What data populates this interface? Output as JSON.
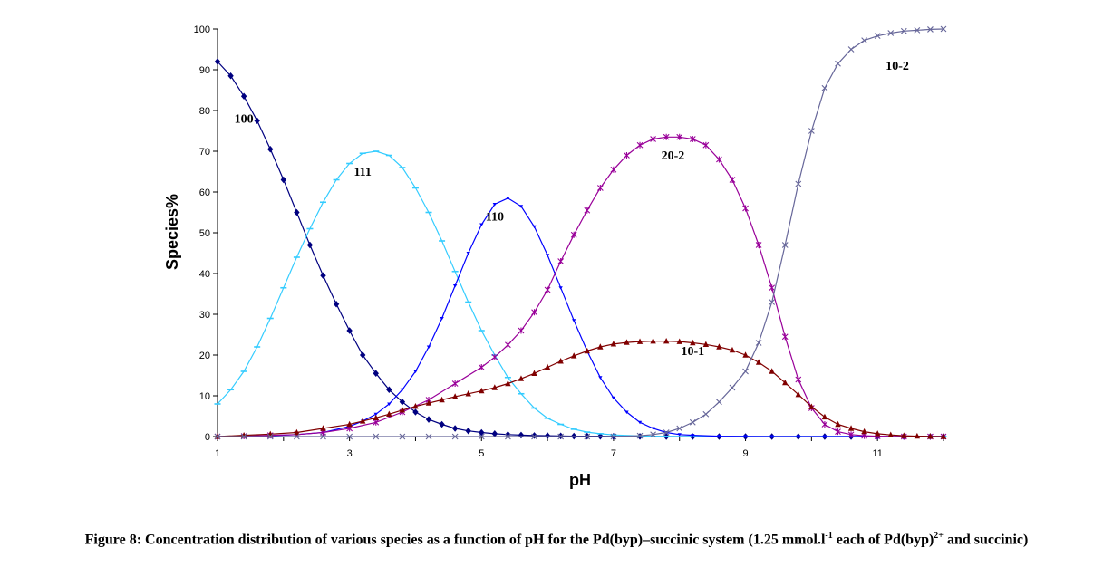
{
  "chart_data": {
    "type": "line",
    "title": "",
    "xlabel": "pH",
    "ylabel": "Species%",
    "xlim": [
      1,
      12
    ],
    "ylim": [
      0,
      100
    ],
    "x_ticks": [
      1,
      3,
      5,
      7,
      9,
      11
    ],
    "y_ticks": [
      0,
      10,
      20,
      30,
      40,
      50,
      60,
      70,
      80,
      90,
      100
    ],
    "grid": false,
    "legend": "none",
    "series": [
      {
        "name": "100",
        "color": "#000080",
        "marker": "diamond",
        "x": [
          1.0,
          1.2,
          1.4,
          1.6,
          1.8,
          2.0,
          2.2,
          2.4,
          2.6,
          2.8,
          3.0,
          3.2,
          3.4,
          3.6,
          3.8,
          4.0,
          4.2,
          4.4,
          4.6,
          4.8,
          5.0,
          5.2,
          5.4,
          5.6,
          5.8,
          6.0,
          6.2,
          6.4,
          6.6,
          6.8,
          7.0,
          7.4,
          7.8,
          8.2,
          8.6,
          9.0,
          9.4,
          9.8,
          10.2,
          10.6,
          11.0,
          11.4,
          11.8,
          12.0
        ],
        "y": [
          92,
          88.5,
          83.5,
          77.5,
          70.5,
          63,
          55,
          47,
          39.5,
          32.5,
          26,
          20,
          15.5,
          11.5,
          8.5,
          6,
          4.2,
          3,
          2,
          1.4,
          1,
          0.7,
          0.5,
          0.35,
          0.25,
          0.2,
          0.15,
          0.1,
          0.1,
          0.08,
          0.05,
          0.03,
          0,
          0,
          0,
          0,
          0,
          0,
          0,
          0,
          0,
          0,
          0,
          0
        ]
      },
      {
        "name": "111",
        "color": "#33CCFF",
        "marker": "dash",
        "x": [
          1.0,
          1.2,
          1.4,
          1.6,
          1.8,
          2.0,
          2.2,
          2.4,
          2.6,
          2.8,
          3.0,
          3.2,
          3.4,
          3.6,
          3.8,
          4.0,
          4.2,
          4.4,
          4.6,
          4.8,
          5.0,
          5.2,
          5.4,
          5.6,
          5.8,
          6.0,
          6.2,
          6.4,
          6.6,
          6.8,
          7.0,
          7.4,
          7.8,
          8.2,
          8.6,
          9.0,
          9.4,
          9.8,
          10.2,
          10.6,
          11.0,
          11.4,
          11.8,
          12.0
        ],
        "y": [
          8,
          11.5,
          16,
          22,
          29,
          36.5,
          44,
          51,
          57.5,
          63,
          67,
          69.5,
          70,
          69,
          66,
          61,
          55,
          48,
          40.5,
          33,
          26,
          20,
          14.5,
          10.5,
          7,
          4.5,
          3,
          1.8,
          1.1,
          0.7,
          0.4,
          0.15,
          0.05,
          0,
          0,
          0,
          0,
          0,
          0,
          0,
          0,
          0,
          0,
          0
        ]
      },
      {
        "name": "110",
        "color": "#0000FF",
        "marker": "triangle-down",
        "x": [
          1.0,
          1.4,
          1.8,
          2.2,
          2.6,
          3.0,
          3.2,
          3.4,
          3.6,
          3.8,
          4.0,
          4.2,
          4.4,
          4.6,
          4.8,
          5.0,
          5.2,
          5.4,
          5.6,
          5.8,
          6.0,
          6.2,
          6.4,
          6.6,
          6.8,
          7.0,
          7.2,
          7.4,
          7.6,
          7.8,
          8.0,
          8.2,
          8.6,
          9.0,
          9.4,
          9.8,
          10.2,
          10.6,
          11.0,
          11.4,
          11.8,
          12.0
        ],
        "y": [
          0,
          0.1,
          0.2,
          0.5,
          1,
          2.5,
          3.8,
          5.5,
          8,
          11.5,
          16,
          22,
          29,
          37,
          45,
          52,
          57,
          58.5,
          56.5,
          51.5,
          44.5,
          36.5,
          28.5,
          21,
          14.5,
          9.5,
          6,
          3.5,
          2,
          1,
          0.5,
          0.3,
          0.1,
          0.05,
          0,
          0,
          0,
          0,
          0,
          0,
          0,
          0
        ]
      },
      {
        "name": "20-2",
        "color": "#990099",
        "marker": "star",
        "x": [
          1.0,
          1.4,
          1.8,
          2.2,
          2.6,
          3.0,
          3.4,
          3.8,
          4.2,
          4.6,
          5.0,
          5.2,
          5.4,
          5.6,
          5.8,
          6.0,
          6.2,
          6.4,
          6.6,
          6.8,
          7.0,
          7.2,
          7.4,
          7.6,
          7.8,
          8.0,
          8.2,
          8.4,
          8.6,
          8.8,
          9.0,
          9.2,
          9.4,
          9.6,
          9.8,
          10.0,
          10.2,
          10.4,
          10.6,
          10.8,
          11.0,
          11.4,
          11.8,
          12.0
        ],
        "y": [
          0,
          0.1,
          0.3,
          0.5,
          1,
          2,
          3.5,
          6,
          9,
          13,
          17,
          19.5,
          22.5,
          26,
          30.5,
          36,
          43,
          49.5,
          55.5,
          61,
          65.5,
          69,
          71.5,
          73,
          73.5,
          73.5,
          73,
          71.5,
          68,
          63,
          56,
          47,
          36.5,
          24.5,
          14,
          7,
          3,
          1.2,
          0.5,
          0.2,
          0.1,
          0,
          0,
          0
        ]
      },
      {
        "name": "10-1",
        "color": "#800000",
        "marker": "triangle-up",
        "x": [
          1.0,
          1.4,
          1.8,
          2.2,
          2.6,
          3.0,
          3.2,
          3.4,
          3.6,
          3.8,
          4.0,
          4.2,
          4.4,
          4.6,
          4.8,
          5.0,
          5.2,
          5.4,
          5.6,
          5.8,
          6.0,
          6.2,
          6.4,
          6.6,
          6.8,
          7.0,
          7.2,
          7.4,
          7.6,
          7.8,
          8.0,
          8.2,
          8.4,
          8.6,
          8.8,
          9.0,
          9.2,
          9.4,
          9.6,
          9.8,
          10.0,
          10.2,
          10.4,
          10.6,
          10.8,
          11.0,
          11.2,
          11.4,
          11.6,
          11.8,
          12.0
        ],
        "y": [
          0,
          0.3,
          0.6,
          1,
          2,
          3,
          3.8,
          4.6,
          5.5,
          6.5,
          7.4,
          8.2,
          9,
          9.8,
          10.5,
          11.2,
          12,
          13,
          14.2,
          15.5,
          17,
          18.5,
          19.8,
          21,
          22,
          22.7,
          23.1,
          23.3,
          23.4,
          23.4,
          23.3,
          23,
          22.6,
          22,
          21.2,
          20,
          18.2,
          16,
          13.2,
          10.3,
          7.3,
          4.8,
          3,
          2,
          1.2,
          0.7,
          0.4,
          0.2,
          0.1,
          0.05,
          0
        ]
      },
      {
        "name": "10-2",
        "color": "#666699",
        "marker": "x",
        "x": [
          1.0,
          1.4,
          1.8,
          2.2,
          2.6,
          3.0,
          3.4,
          3.8,
          4.2,
          4.6,
          5.0,
          5.4,
          5.8,
          6.2,
          6.6,
          7.0,
          7.4,
          7.6,
          7.8,
          8.0,
          8.2,
          8.4,
          8.6,
          8.8,
          9.0,
          9.2,
          9.4,
          9.6,
          9.8,
          10.0,
          10.2,
          10.4,
          10.6,
          10.8,
          11.0,
          11.2,
          11.4,
          11.6,
          11.8,
          12.0
        ],
        "y": [
          0,
          0,
          0,
          0,
          0,
          0,
          0,
          0,
          0,
          0,
          0,
          0,
          0,
          0,
          0,
          0,
          0.2,
          0.5,
          1,
          2,
          3.5,
          5.5,
          8.5,
          12,
          16,
          23,
          33,
          47,
          62,
          75,
          85.5,
          91.5,
          95,
          97.2,
          98.3,
          99,
          99.5,
          99.7,
          99.9,
          100
        ]
      }
    ],
    "annotations": [
      {
        "text": "100",
        "x": 1.4,
        "y": 77
      },
      {
        "text": "111",
        "x": 3.2,
        "y": 64
      },
      {
        "text": "110",
        "x": 5.2,
        "y": 53
      },
      {
        "text": "20-2",
        "x": 7.9,
        "y": 68
      },
      {
        "text": "10-1",
        "x": 8.2,
        "y": 20
      },
      {
        "text": "10-2",
        "x": 11.3,
        "y": 90
      }
    ]
  },
  "caption": {
    "prefix": "Figure 8: Concentration distribution of various species as a function of pH for the Pd(byp)–succinic system (1.25 mmol.l",
    "sup1": "-1",
    "middle": " each of Pd(byp)",
    "sup2": "2+",
    "suffix": " and succinic)"
  }
}
